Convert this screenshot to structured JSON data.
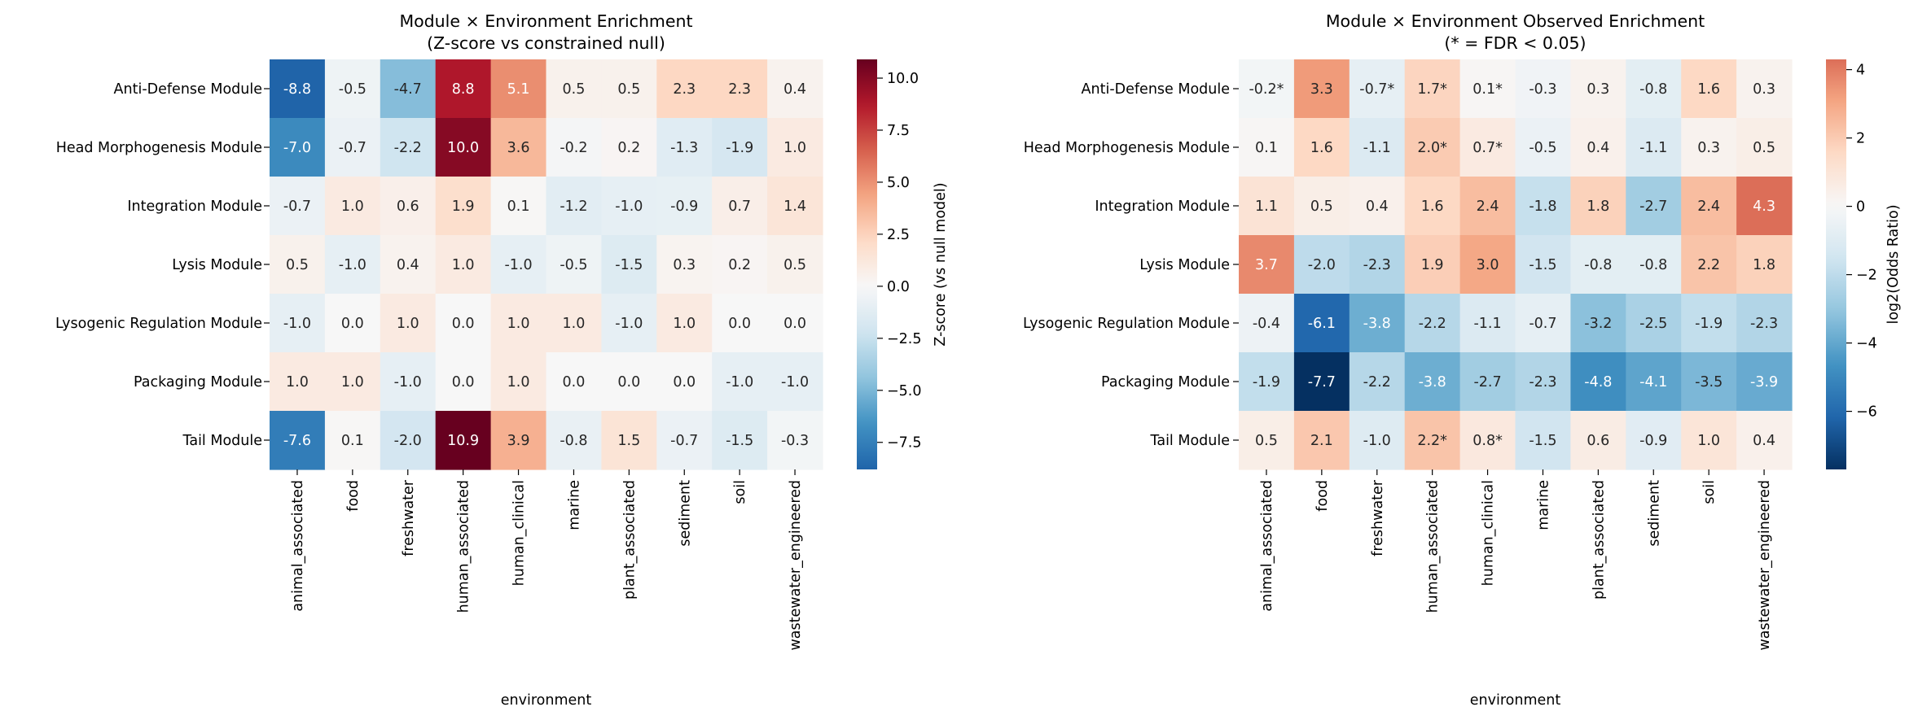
{
  "chart_data": [
    {
      "type": "heatmap",
      "title": [
        "Module × Environment Enrichment",
        "(Z-score vs constrained null)"
      ],
      "xlabel": "environment",
      "ylabel": "",
      "x_categories": [
        "animal_associated",
        "food",
        "freshwater",
        "human_associated",
        "human_clinical",
        "marine",
        "plant_associated",
        "sediment",
        "soil",
        "wastewater_engineered"
      ],
      "y_categories": [
        "Anti-Defense Module",
        "Head Morphogenesis Module",
        "Integration Module",
        "Lysis Module",
        "Lysogenic Regulation Module",
        "Packaging Module",
        "Tail Module"
      ],
      "values": [
        [
          -8.8,
          -0.5,
          -4.7,
          8.8,
          5.1,
          0.5,
          0.5,
          2.3,
          2.3,
          0.4
        ],
        [
          -7.0,
          -0.7,
          -2.2,
          10.0,
          3.6,
          -0.2,
          0.2,
          -1.3,
          -1.9,
          1.0
        ],
        [
          -0.7,
          1.0,
          0.6,
          1.9,
          0.1,
          -1.2,
          -1.0,
          -0.9,
          0.7,
          1.4
        ],
        [
          0.5,
          -1.0,
          0.4,
          1.0,
          -1.0,
          -0.5,
          -1.5,
          0.3,
          0.2,
          0.5
        ],
        [
          -1.0,
          0.0,
          1.0,
          0.0,
          1.0,
          1.0,
          -1.0,
          1.0,
          0.0,
          0.0
        ],
        [
          1.0,
          1.0,
          -1.0,
          0.0,
          1.0,
          0.0,
          0.0,
          0.0,
          -1.0,
          -1.0
        ],
        [
          -7.6,
          0.1,
          -2.0,
          10.9,
          3.9,
          -0.8,
          1.5,
          -0.7,
          -1.5,
          -0.3
        ]
      ],
      "annotations": [
        [
          "-8.8",
          "-0.5",
          "-4.7",
          "8.8",
          "5.1",
          "0.5",
          "0.5",
          "2.3",
          "2.3",
          "0.4"
        ],
        [
          "-7.0",
          "-0.7",
          "-2.2",
          "10.0",
          "3.6",
          "-0.2",
          "0.2",
          "-1.3",
          "-1.9",
          "1.0"
        ],
        [
          "-0.7",
          "1.0",
          "0.6",
          "1.9",
          "0.1",
          "-1.2",
          "-1.0",
          "-0.9",
          "0.7",
          "1.4"
        ],
        [
          "0.5",
          "-1.0",
          "0.4",
          "1.0",
          "-1.0",
          "-0.5",
          "-1.5",
          "0.3",
          "0.2",
          "0.5"
        ],
        [
          "-1.0",
          "0.0",
          "1.0",
          "0.0",
          "1.0",
          "1.0",
          "-1.0",
          "1.0",
          "0.0",
          "0.0"
        ],
        [
          "1.0",
          "1.0",
          "-1.0",
          "0.0",
          "1.0",
          "0.0",
          "0.0",
          "0.0",
          "-1.0",
          "-1.0"
        ],
        [
          "-7.6",
          "0.1",
          "-2.0",
          "10.9",
          "3.9",
          "-0.8",
          "1.5",
          "-0.7",
          "-1.5",
          "-0.3"
        ]
      ],
      "colormap": "RdBu_r",
      "center": 0,
      "vmin": -8.8,
      "vmax": 10.9,
      "colorbar": {
        "label": "Z-score (vs null model)",
        "ticks": [
          10.0,
          7.5,
          5.0,
          2.5,
          0.0,
          -2.5,
          -5.0,
          -7.5
        ],
        "tick_labels": [
          "10.0",
          "7.5",
          "5.0",
          "2.5",
          "0.0",
          "−2.5",
          "−5.0",
          "−7.5"
        ]
      }
    },
    {
      "type": "heatmap",
      "title": [
        "Module × Environment Observed Enrichment",
        "(* = FDR < 0.05)"
      ],
      "xlabel": "environment",
      "ylabel": "",
      "x_categories": [
        "animal_associated",
        "food",
        "freshwater",
        "human_associated",
        "human_clinical",
        "marine",
        "plant_associated",
        "sediment",
        "soil",
        "wastewater_engineered"
      ],
      "y_categories": [
        "Anti-Defense Module",
        "Head Morphogenesis Module",
        "Integration Module",
        "Lysis Module",
        "Lysogenic Regulation Module",
        "Packaging Module",
        "Tail Module"
      ],
      "values": [
        [
          -0.2,
          3.3,
          -0.7,
          1.7,
          0.1,
          -0.3,
          0.3,
          -0.8,
          1.6,
          0.3
        ],
        [
          0.1,
          1.6,
          -1.1,
          2.0,
          0.7,
          -0.5,
          0.4,
          -1.1,
          0.3,
          0.5
        ],
        [
          1.1,
          0.5,
          0.4,
          1.6,
          2.4,
          -1.8,
          1.8,
          -2.7,
          2.4,
          4.3
        ],
        [
          3.7,
          -2.0,
          -2.3,
          1.9,
          3.0,
          -1.5,
          -0.8,
          -0.8,
          2.2,
          1.8
        ],
        [
          -0.4,
          -6.1,
          -3.8,
          -2.2,
          -1.1,
          -0.7,
          -3.2,
          -2.5,
          -1.9,
          -2.3
        ],
        [
          -1.9,
          -7.7,
          -2.2,
          -3.8,
          -2.7,
          -2.3,
          -4.8,
          -4.1,
          -3.5,
          -3.9
        ],
        [
          0.5,
          2.1,
          -1.0,
          2.2,
          0.8,
          -1.5,
          0.6,
          -0.9,
          1.0,
          0.4
        ]
      ],
      "annotations": [
        [
          "-0.2*",
          "3.3",
          "-0.7*",
          "1.7*",
          "0.1*",
          "-0.3",
          "0.3",
          "-0.8",
          "1.6",
          "0.3"
        ],
        [
          "0.1",
          "1.6",
          "-1.1",
          "2.0*",
          "0.7*",
          "-0.5",
          "0.4",
          "-1.1",
          "0.3",
          "0.5"
        ],
        [
          "1.1",
          "0.5",
          "0.4",
          "1.6",
          "2.4",
          "-1.8",
          "1.8",
          "-2.7",
          "2.4",
          "4.3"
        ],
        [
          "3.7",
          "-2.0",
          "-2.3",
          "1.9",
          "3.0",
          "-1.5",
          "-0.8",
          "-0.8",
          "2.2",
          "1.8"
        ],
        [
          "-0.4",
          "-6.1",
          "-3.8",
          "-2.2",
          "-1.1",
          "-0.7",
          "-3.2",
          "-2.5",
          "-1.9",
          "-2.3"
        ],
        [
          "-1.9",
          "-7.7",
          "-2.2",
          "-3.8",
          "-2.7",
          "-2.3",
          "-4.8",
          "-4.1",
          "-3.5",
          "-3.9"
        ],
        [
          "0.5",
          "2.1",
          "-1.0",
          "2.2*",
          "0.8*",
          "-1.5",
          "0.6",
          "-0.9",
          "1.0",
          "0.4"
        ]
      ],
      "colormap": "RdBu_r",
      "center": 0,
      "vmin": -7.7,
      "vmax": 4.3,
      "colorbar": {
        "label": "log2(Odds Ratio)",
        "ticks": [
          4,
          2,
          0,
          -2,
          -4,
          -6
        ],
        "tick_labels": [
          "4",
          "2",
          "0",
          "−2",
          "−4",
          "−6"
        ]
      }
    }
  ]
}
